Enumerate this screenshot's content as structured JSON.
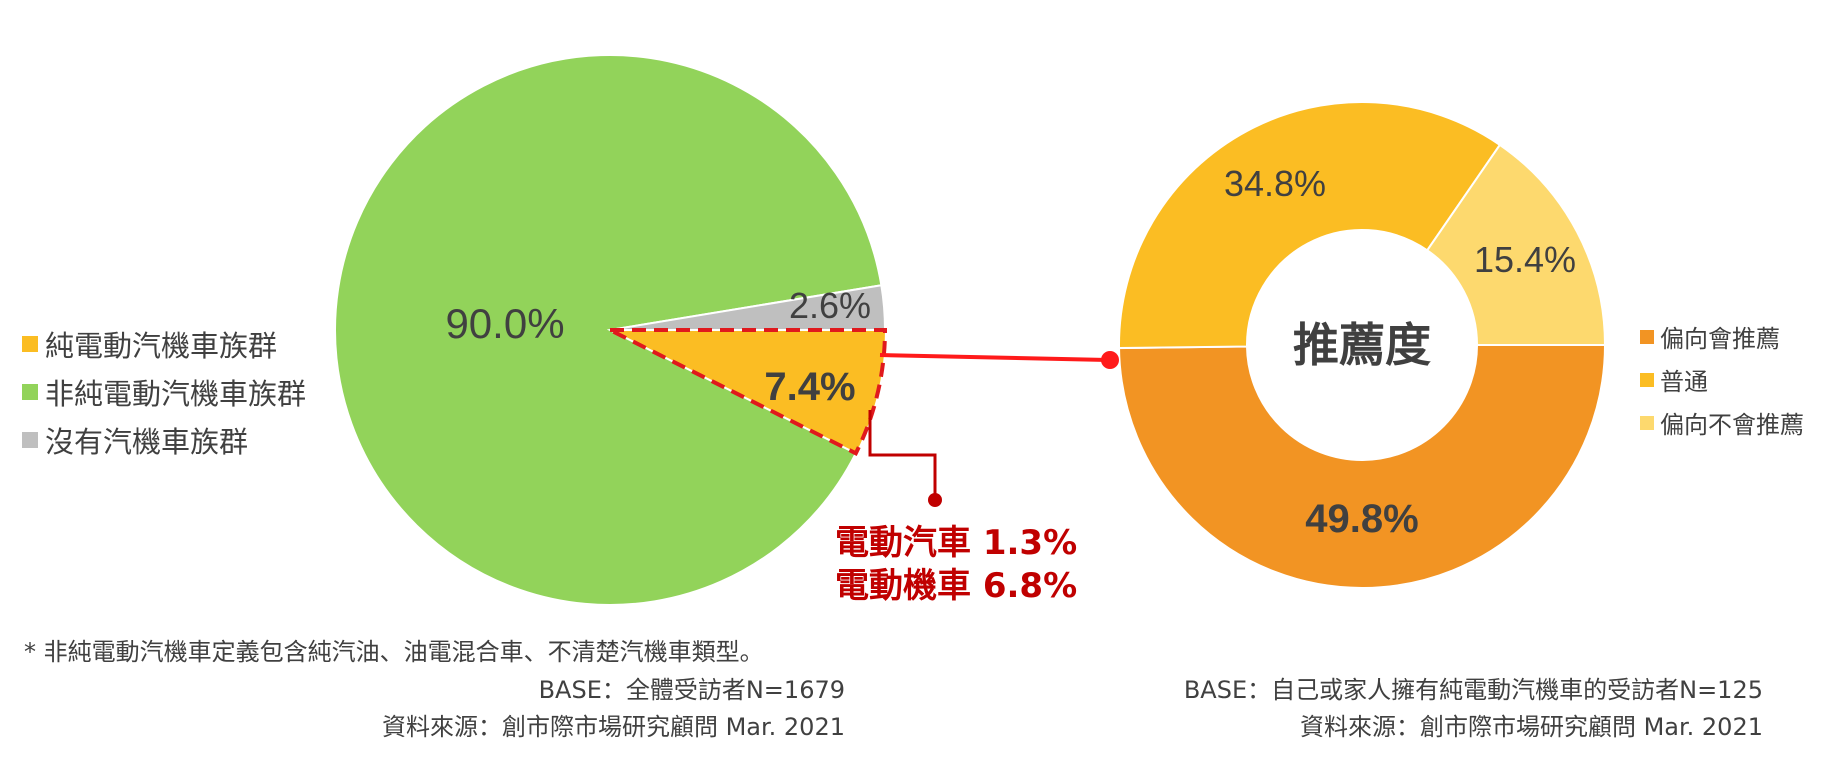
{
  "chart_data": [
    {
      "type": "pie",
      "categories": [
        "純電動汽機車族群",
        "非純電動汽機車族群",
        "沒有汽機車族群"
      ],
      "values": [
        7.4,
        90.0,
        2.6
      ],
      "labels": [
        "7.4%",
        "90.0%",
        "2.6%"
      ],
      "colors": [
        "#fbbd23",
        "#92d35a",
        "#bfbfbf"
      ],
      "legend_position": "left",
      "annotation": {
        "lines": [
          "電動汽車 1.3%",
          "電動機車 6.8%"
        ]
      }
    },
    {
      "type": "pie",
      "style": "donut",
      "center_label": "推薦度",
      "categories": [
        "偏向會推薦",
        "普通",
        "偏向不會推薦"
      ],
      "values": [
        49.8,
        34.8,
        15.4
      ],
      "labels": [
        "49.8%",
        "34.8%",
        "15.4%"
      ],
      "colors": [
        "#f29423",
        "#fbbd23",
        "#fdd96e"
      ],
      "legend_position": "right"
    }
  ],
  "notes": {
    "footnote": "* 非純電動汽機車定義包含純汽油、油電混合車、不清楚汽機車類型。",
    "left_base": "BASE：全體受訪者N=1679",
    "left_source": "資料來源：創市際市場研究顧問 Mar. 2021",
    "right_base": "BASE：自己或家人擁有純電動汽機車的受訪者N=125",
    "right_source": "資料來源：創市際市場研究顧問 Mar. 2021"
  }
}
